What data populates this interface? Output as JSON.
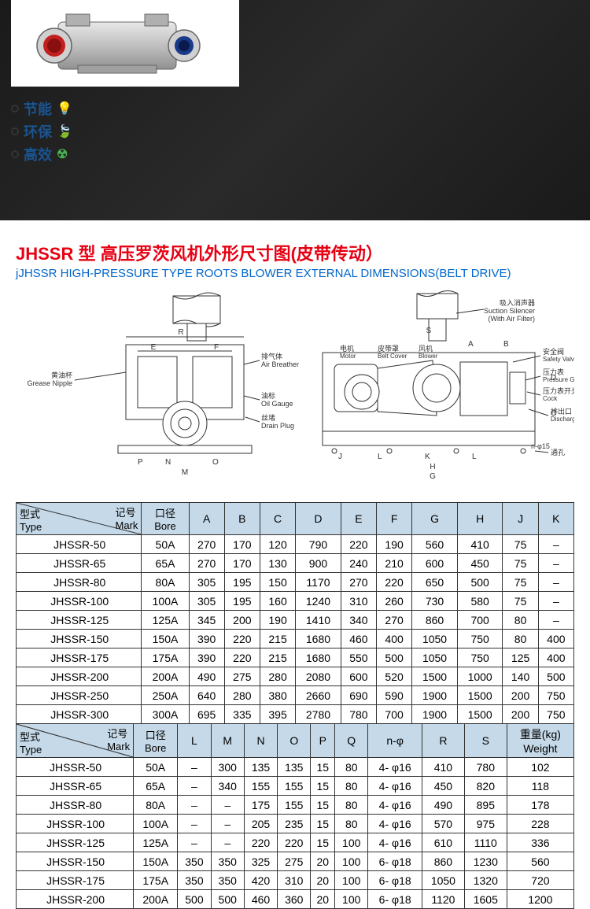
{
  "features": [
    {
      "label": "节能",
      "icon": "💡",
      "icon_class": "icon-lightbulb"
    },
    {
      "label": "环保",
      "icon": "🍃",
      "icon_class": "icon-leaf"
    },
    {
      "label": "高效",
      "icon": "☢",
      "icon_class": "icon-nuclear"
    }
  ],
  "title": {
    "prefix": "JHSSR",
    "main": " 型 高压罗茨风机外形尺寸图(皮带传动）",
    "sub": "jJHSSR HIGH-PRESSURE TYPE  ROOTS BLOWER EXTERNAL DIMENSIONS(BELT DRIVE)"
  },
  "diagram_labels": {
    "suction": "吸入消声器",
    "suction_en": "Suction Silencer",
    "suction_en2": "(With Air Filter)",
    "grease": "黄油杯",
    "grease_en": "Grease Nipple",
    "air_breather": "排气体",
    "air_breather_en": "Air Breather",
    "oil_gauge": "油标",
    "oil_gauge_en": "Oil Gauge",
    "drain": "丝堵",
    "drain_en": "Drain Plug",
    "motor": "电机",
    "motor_en": "Motor",
    "belt_cover": "皮带罩",
    "belt_cover_en": "Belt Cover",
    "blower": "风机",
    "blower_en": "Blower",
    "safety": "安全阀",
    "safety_en": "Safety Valve",
    "pressure": "压力表",
    "pressure_en": "Pressure Gauge",
    "cock": "压力表开关",
    "cock_en": "Cock",
    "discharge": "排出口",
    "discharge_en": "Discharge Bore",
    "hole": "通孔"
  },
  "table1": {
    "header_type": "型式",
    "header_type_en": "Type",
    "header_mark": "记号",
    "header_mark_en": "Mark",
    "header_bore": "口径",
    "header_bore_en": "Bore",
    "columns": [
      "A",
      "B",
      "C",
      "D",
      "E",
      "F",
      "G",
      "H",
      "J",
      "K"
    ],
    "rows": [
      {
        "type": "JHSSR-50",
        "bore": "50A",
        "vals": [
          "270",
          "170",
          "120",
          "790",
          "220",
          "190",
          "560",
          "410",
          "75",
          "–"
        ]
      },
      {
        "type": "JHSSR-65",
        "bore": "65A",
        "vals": [
          "270",
          "170",
          "130",
          "900",
          "240",
          "210",
          "600",
          "450",
          "75",
          "–"
        ]
      },
      {
        "type": "JHSSR-80",
        "bore": "80A",
        "vals": [
          "305",
          "195",
          "150",
          "1170",
          "270",
          "220",
          "650",
          "500",
          "75",
          "–"
        ]
      },
      {
        "type": "JHSSR-100",
        "bore": "100A",
        "vals": [
          "305",
          "195",
          "160",
          "1240",
          "310",
          "260",
          "730",
          "580",
          "75",
          "–"
        ]
      },
      {
        "type": "JHSSR-125",
        "bore": "125A",
        "vals": [
          "345",
          "200",
          "190",
          "1410",
          "340",
          "270",
          "860",
          "700",
          "80",
          "–"
        ]
      },
      {
        "type": "JHSSR-150",
        "bore": "150A",
        "vals": [
          "390",
          "220",
          "215",
          "1680",
          "460",
          "400",
          "1050",
          "750",
          "80",
          "400"
        ]
      },
      {
        "type": "JHSSR-175",
        "bore": "175A",
        "vals": [
          "390",
          "220",
          "215",
          "1680",
          "550",
          "500",
          "1050",
          "750",
          "125",
          "400"
        ]
      },
      {
        "type": "JHSSR-200",
        "bore": "200A",
        "vals": [
          "490",
          "275",
          "280",
          "2080",
          "600",
          "520",
          "1500",
          "1000",
          "140",
          "500"
        ]
      },
      {
        "type": "JHSSR-250",
        "bore": "250A",
        "vals": [
          "640",
          "280",
          "380",
          "2660",
          "690",
          "590",
          "1900",
          "1500",
          "200",
          "750"
        ]
      },
      {
        "type": "JHSSR-300",
        "bore": "300A",
        "vals": [
          "695",
          "335",
          "395",
          "2780",
          "780",
          "700",
          "1900",
          "1500",
          "200",
          "750"
        ]
      }
    ]
  },
  "table2": {
    "header_type": "型式",
    "header_type_en": "Type",
    "header_mark": "记号",
    "header_mark_en": "Mark",
    "header_bore": "口径",
    "header_bore_en": "Bore",
    "columns": [
      "L",
      "M",
      "N",
      "O",
      "P",
      "Q",
      "n-φ",
      "R",
      "S"
    ],
    "weight_col": "重量(kg)",
    "weight_col_en": "Weight",
    "rows": [
      {
        "type": "JHSSR-50",
        "bore": "50A",
        "vals": [
          "–",
          "300",
          "135",
          "135",
          "15",
          "80",
          "4- φ16",
          "410",
          "780",
          "102"
        ]
      },
      {
        "type": "JHSSR-65",
        "bore": "65A",
        "vals": [
          "–",
          "340",
          "155",
          "155",
          "15",
          "80",
          "4- φ16",
          "450",
          "820",
          "118"
        ]
      },
      {
        "type": "JHSSR-80",
        "bore": "80A",
        "vals": [
          "–",
          "–",
          "175",
          "155",
          "15",
          "80",
          "4- φ16",
          "490",
          "895",
          "178"
        ]
      },
      {
        "type": "JHSSR-100",
        "bore": "100A",
        "vals": [
          "–",
          "–",
          "205",
          "235",
          "15",
          "80",
          "4- φ16",
          "570",
          "975",
          "228"
        ]
      },
      {
        "type": "JHSSR-125",
        "bore": "125A",
        "vals": [
          "–",
          "–",
          "220",
          "220",
          "15",
          "100",
          "4- φ16",
          "610",
          "1110",
          "336"
        ]
      },
      {
        "type": "JHSSR-150",
        "bore": "150A",
        "vals": [
          "350",
          "350",
          "325",
          "275",
          "20",
          "100",
          "6- φ18",
          "860",
          "1230",
          "560"
        ]
      },
      {
        "type": "JHSSR-175",
        "bore": "175A",
        "vals": [
          "350",
          "350",
          "420",
          "310",
          "20",
          "100",
          "6- φ18",
          "1050",
          "1320",
          "720"
        ]
      },
      {
        "type": "JHSSR-200",
        "bore": "200A",
        "vals": [
          "500",
          "500",
          "460",
          "360",
          "20",
          "100",
          "6- φ18",
          "1120",
          "1605",
          "1200"
        ]
      }
    ]
  },
  "colors": {
    "title_red": "#e60012",
    "title_blue": "#0066cc",
    "table_header_bg": "#c5d9e8",
    "border": "#333333"
  }
}
